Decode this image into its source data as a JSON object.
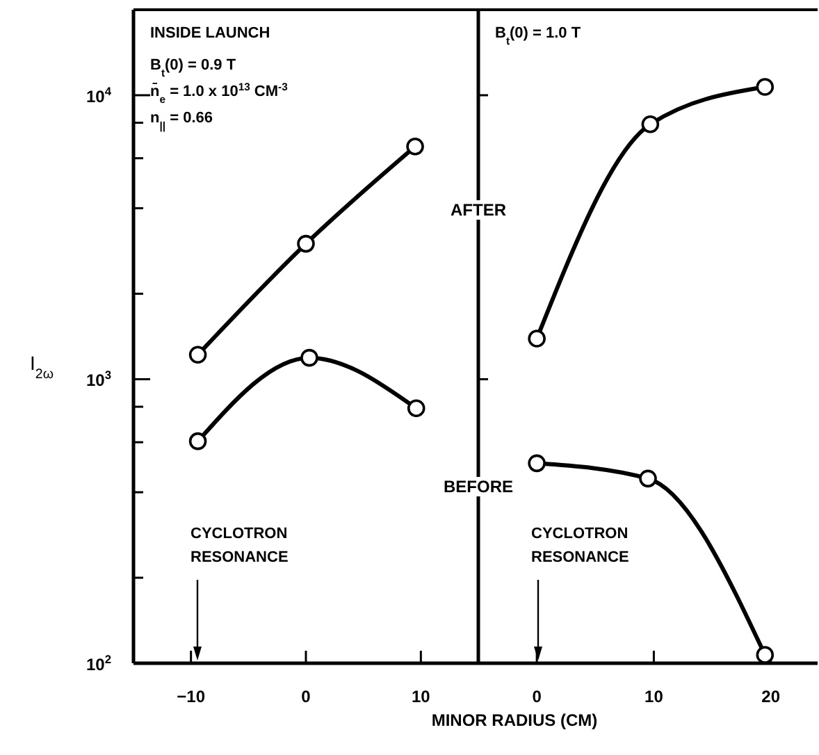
{
  "chart_data": [
    {
      "type": "line",
      "xlabel": "MINOR RADIUS (CM)",
      "ylabel": "I$_{2ω}$",
      "log": "y",
      "marker": "circle",
      "line_style": "solid",
      "grid": false,
      "xlim": [
        -15,
        15
      ],
      "xticks": [
        {
          "value": -10,
          "label": "−10"
        },
        0,
        10
      ],
      "ylim": [
        100,
        20000
      ],
      "yticks": [
        {
          "value": 100,
          "label": "10$^{2}$"
        },
        {
          "value": 200,
          "label": null
        },
        {
          "value": 400,
          "label": null
        },
        {
          "value": 600,
          "label": null
        },
        {
          "value": 800,
          "label": null
        },
        {
          "value": 1000,
          "label": "10$^{3}$"
        },
        {
          "value": 2000,
          "label": null
        },
        {
          "value": 4000,
          "label": null
        },
        {
          "value": 6000,
          "label": null
        },
        {
          "value": 8000,
          "label": null
        },
        {
          "value": 10000,
          "label": "10$^{4}$"
        }
      ],
      "series": [
        {
          "name": "AFTER",
          "color": "#000000",
          "x": [
            -9.4,
            0,
            9.5
          ],
          "values": [
            1220,
            3000,
            6600
          ]
        },
        {
          "name": "BEFORE",
          "color": "#000000",
          "x": [
            -9.4,
            0.3,
            9.6
          ],
          "values": [
            605,
            1190,
            790
          ]
        }
      ],
      "annotations": [
        "INSIDE LAUNCH",
        "B$_{t}$(0) = 0.9 T",
        "n̄$_{e}$ = 1.0 x 10$^{13}$ CM$^{-3}$",
        "n$_{||}$ = 0.66",
        "CYCLOTRON RESONANCE"
      ]
    },
    {
      "type": "line",
      "log": "y",
      "marker": "circle",
      "line_style": "solid",
      "grid": false,
      "tick_labels": "x",
      "xlim": [
        -5,
        24
      ],
      "xticks": [
        0,
        10,
        20
      ],
      "ylim": [
        100,
        20000
      ],
      "yticks": [
        {
          "value": 100,
          "label": null
        },
        {
          "value": 1000,
          "label": null
        },
        {
          "value": 10000,
          "label": null
        }
      ],
      "series": [
        {
          "color": "#000000",
          "x": [
            0,
            9.7,
            19.5
          ],
          "values": [
            1390,
            7900,
            10700
          ]
        },
        {
          "color": "#000000",
          "x": [
            0,
            9.5,
            19.5
          ],
          "values": [
            506,
            447,
            107
          ]
        }
      ],
      "annotations": [
        "B$_{t}$(0) = 1.0 T",
        "CYCLOTRON RESONANCE"
      ]
    }
  ]
}
